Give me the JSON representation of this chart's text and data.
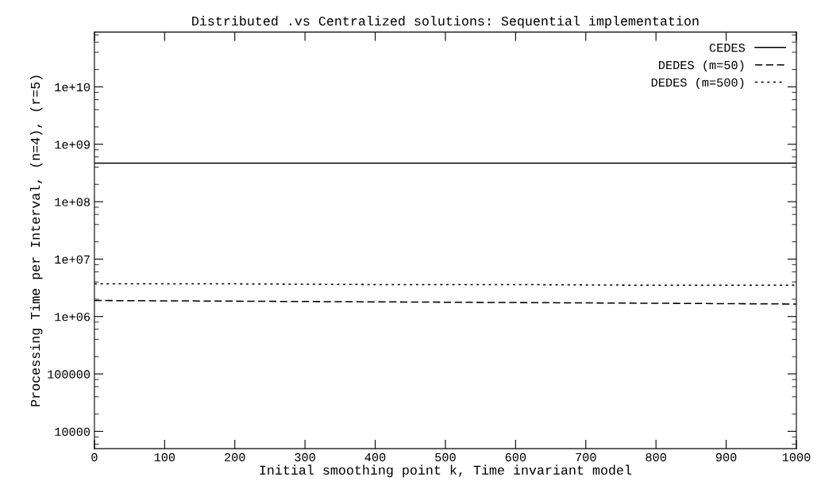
{
  "chart_data": {
    "type": "line",
    "title": "Distributed .vs Centralized solutions: Sequential implementation",
    "xlabel": "Initial smoothing point k, Time invariant model",
    "ylabel": "Processing Time per Interval, (n=4), (r=5)",
    "x": [
      0,
      200,
      400,
      600,
      800,
      1000
    ],
    "series": [
      {
        "name": "CEDES",
        "color": "#000000",
        "line_style": "solid",
        "values": [
          470000000,
          470000000,
          470000000,
          470000000,
          470000000,
          470000000
        ]
      },
      {
        "name": "DEDES (m=50)",
        "color": "#000000",
        "line_style": "dashed",
        "values": [
          1900000,
          1850000,
          1800000,
          1750000,
          1700000,
          1650000
        ]
      },
      {
        "name": "DEDES (m=500)",
        "color": "#000000",
        "line_style": "dotted",
        "values": [
          3700000,
          3700000,
          3600000,
          3600000,
          3500000,
          3500000
        ]
      }
    ],
    "log": "y",
    "xlim": [
      0,
      1000
    ],
    "xticks": [
      0,
      100,
      200,
      300,
      400,
      500,
      600,
      700,
      800,
      900,
      1000
    ],
    "ylim": [
      5000,
      90000000000
    ],
    "yticks": [
      10000,
      100000,
      {
        "value": 1000000,
        "label": "1e+06"
      },
      {
        "value": 10000000,
        "label": "1e+07"
      },
      {
        "value": 100000000,
        "label": "1e+08"
      },
      {
        "value": 1000000000,
        "label": "1e+09"
      },
      {
        "value": 10000000000,
        "label": "1e+10"
      }
    ],
    "grid": false,
    "legend": "top right",
    "marker": "none"
  }
}
